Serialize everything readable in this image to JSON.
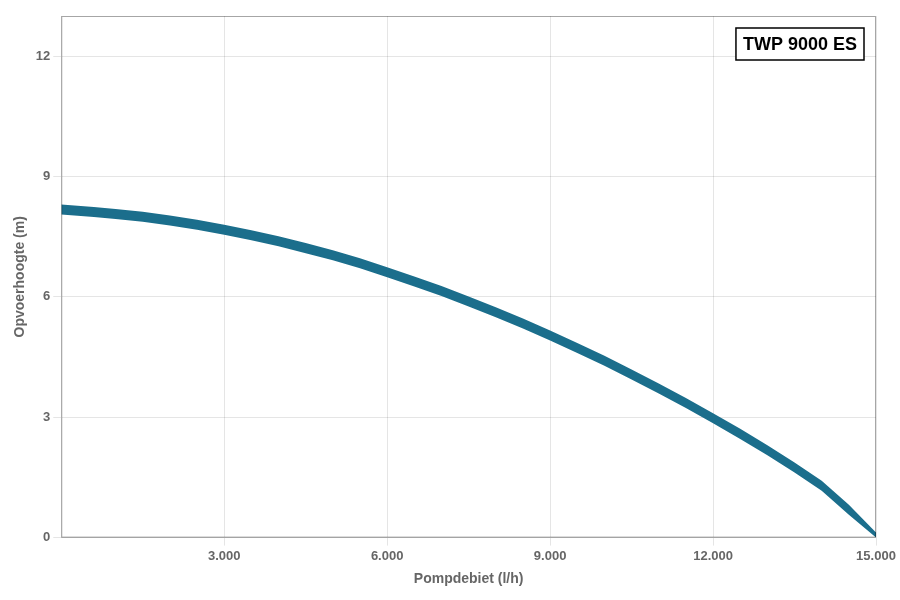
{
  "chart_data": {
    "type": "band",
    "x": [
      0,
      300,
      600,
      1000,
      1500,
      2000,
      2500,
      3000,
      3500,
      4000,
      4500,
      5000,
      5500,
      6000,
      6500,
      7000,
      7500,
      8000,
      8500,
      9000,
      9500,
      10000,
      10500,
      11000,
      11500,
      12000,
      12500,
      13000,
      13500,
      14000,
      14500,
      15000
    ],
    "upper": [
      8.3,
      8.27,
      8.24,
      8.19,
      8.12,
      8.03,
      7.92,
      7.8,
      7.66,
      7.51,
      7.34,
      7.16,
      6.96,
      6.74,
      6.51,
      6.27,
      6.01,
      5.74,
      5.46,
      5.16,
      4.85,
      4.53,
      4.19,
      3.84,
      3.48,
      3.1,
      2.71,
      2.3,
      1.87,
      1.42,
      0.82,
      0.13
    ],
    "lower": [
      8.05,
      8.02,
      7.99,
      7.94,
      7.87,
      7.78,
      7.67,
      7.55,
      7.41,
      7.26,
      7.09,
      6.91,
      6.71,
      6.49,
      6.26,
      6.02,
      5.76,
      5.49,
      5.21,
      4.91,
      4.6,
      4.28,
      3.94,
      3.59,
      3.23,
      2.85,
      2.46,
      2.05,
      1.62,
      1.17,
      0.57,
      0.0
    ],
    "color": "#1b6e8c",
    "xlabel": "Pompdebiet (l/h)",
    "ylabel": "Opvoerhoogte (m)",
    "annotation": "TWP 9000 ES",
    "xlim": [
      0,
      15000
    ],
    "ylim": [
      0,
      13
    ],
    "xticks": [
      {
        "value": 3000,
        "label": "3.000"
      },
      {
        "value": 6000,
        "label": "6.000"
      },
      {
        "value": 9000,
        "label": "9.000"
      },
      {
        "value": 12000,
        "label": "12.000"
      },
      {
        "value": 15000,
        "label": "15.000"
      }
    ],
    "yticks": [
      0,
      3,
      6,
      9,
      12
    ],
    "grid": true
  }
}
